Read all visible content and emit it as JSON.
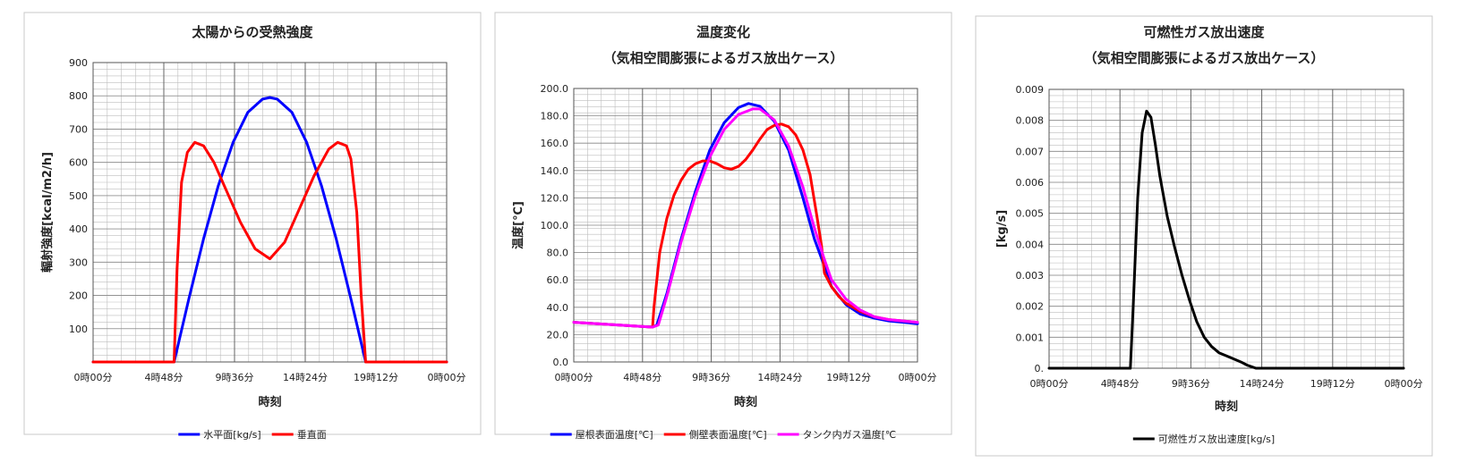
{
  "chart_data": [
    {
      "type": "line",
      "title_lines": [
        "太陽からの受熱強度"
      ],
      "xlabel": "時刻",
      "ylabel": "輻射強度[kcal/m2/h]",
      "xlim": [
        0,
        24
      ],
      "ylim": [
        0,
        900
      ],
      "x_tick_values": [
        0,
        4.8,
        9.6,
        14.4,
        19.2,
        24
      ],
      "x_tick_labels": [
        "0時00分",
        "4時48分",
        "9時36分",
        "14時24分",
        "19時12分",
        "0時00分"
      ],
      "y_tick_values": [
        100,
        200,
        300,
        400,
        500,
        600,
        700,
        800,
        900
      ],
      "y_tick_labels": [
        "100",
        "200",
        "300",
        "400",
        "500",
        "600",
        "700",
        "800",
        "900"
      ],
      "grid": true,
      "legend_position": "bottom",
      "series": [
        {
          "name": "水平面[kg/s]",
          "color": "#0000ff",
          "x": [
            0,
            5.5,
            6.5,
            7.5,
            8.5,
            9.5,
            10.5,
            11.5,
            12,
            12.5,
            13.5,
            14.5,
            15.5,
            16.5,
            17.5,
            18.5,
            24
          ],
          "y": [
            0,
            0,
            190,
            370,
            530,
            660,
            750,
            790,
            795,
            790,
            750,
            660,
            530,
            370,
            190,
            0,
            0
          ]
        },
        {
          "name": "垂直面",
          "color": "#ff0000",
          "x": [
            0,
            5.5,
            5.7,
            6,
            6.4,
            6.9,
            7.5,
            8.2,
            9,
            10,
            11,
            12,
            13,
            14,
            15,
            16,
            16.6,
            17.2,
            17.5,
            17.9,
            18.2,
            18.5,
            24
          ],
          "y": [
            0,
            0,
            280,
            540,
            630,
            660,
            650,
            600,
            520,
            420,
            340,
            310,
            360,
            460,
            560,
            640,
            660,
            650,
            610,
            450,
            200,
            0,
            0
          ]
        }
      ]
    },
    {
      "type": "line",
      "title_lines": [
        "温度変化",
        "（気相空間膨張によるガス放出ケース）"
      ],
      "xlabel": "時刻",
      "ylabel": "温度[℃]",
      "xlim": [
        0,
        24
      ],
      "ylim": [
        0,
        200
      ],
      "x_tick_values": [
        0,
        4.8,
        9.6,
        14.4,
        19.2,
        24
      ],
      "x_tick_labels": [
        "0時00分",
        "4時48分",
        "9時36分",
        "14時24分",
        "19時12分",
        "0時00分"
      ],
      "y_tick_values": [
        0,
        20,
        40,
        60,
        80,
        100,
        120,
        140,
        160,
        180,
        200
      ],
      "y_tick_labels": [
        "0.0",
        "20.0",
        "40.0",
        "60.0",
        "80.0",
        "100.0",
        "120.0",
        "140.0",
        "160.0",
        "180.0",
        "200.0"
      ],
      "grid": true,
      "legend_position": "bottom",
      "series": [
        {
          "name": "屋根表面温度[℃]",
          "color": "#0000ff",
          "x": [
            0,
            5.5,
            5.8,
            6.5,
            7.5,
            8.5,
            9.5,
            10.5,
            11.5,
            12.2,
            13,
            14,
            15,
            16,
            16.8,
            17.5,
            18,
            19,
            20,
            21,
            22,
            24
          ],
          "y": [
            29,
            25.5,
            27,
            50,
            90,
            125,
            155,
            175,
            186,
            189,
            187,
            176,
            155,
            120,
            90,
            70,
            55,
            42,
            35,
            32,
            30,
            28
          ]
        },
        {
          "name": "側壁表面温度[℃]",
          "color": "#ff0000",
          "x": [
            0,
            5.5,
            5.6,
            6,
            6.5,
            7,
            7.5,
            8,
            8.5,
            9,
            9.5,
            10,
            10.5,
            11,
            11.5,
            12,
            12.5,
            13,
            13.5,
            14,
            14.5,
            15,
            15.5,
            16,
            16.5,
            17,
            17.3,
            17.5,
            18,
            18.5,
            19,
            20,
            21,
            22,
            24
          ],
          "y": [
            29,
            25.5,
            40,
            80,
            105,
            122,
            133,
            141,
            145,
            147,
            147,
            145,
            142,
            141,
            143,
            148,
            155,
            163,
            170,
            173,
            174,
            172,
            166,
            155,
            137,
            105,
            85,
            65,
            55,
            48,
            43,
            37,
            33,
            31,
            29
          ]
        },
        {
          "name": "タンク内ガス温度[℃",
          "color": "#ff00ff",
          "x": [
            0,
            5.5,
            5.9,
            6.5,
            7.5,
            8.5,
            9.5,
            10.5,
            11.5,
            12.5,
            13,
            14,
            15,
            16,
            16.8,
            17.5,
            18,
            19,
            20,
            21,
            22,
            24
          ],
          "y": [
            29,
            25.5,
            27,
            48,
            88,
            122,
            150,
            170,
            181,
            185,
            185,
            177,
            158,
            128,
            98,
            75,
            60,
            46,
            38,
            33,
            31,
            29
          ]
        }
      ]
    },
    {
      "type": "line",
      "title_lines": [
        "可燃性ガス放出速度",
        "（気相空間膨張によるガス放出ケース）"
      ],
      "xlabel": "時刻",
      "ylabel": "[kg/s]",
      "xlim": [
        0,
        24
      ],
      "ylim": [
        0,
        0.009
      ],
      "x_tick_values": [
        0,
        4.8,
        9.6,
        14.4,
        19.2,
        24
      ],
      "x_tick_labels": [
        "0時00分",
        "4時48分",
        "9時36分",
        "14時24分",
        "19時12分",
        "0時00分"
      ],
      "y_tick_values": [
        0,
        0.001,
        0.002,
        0.003,
        0.004,
        0.005,
        0.006,
        0.007,
        0.008,
        0.009
      ],
      "y_tick_labels": [
        "0.",
        "0.001",
        "0.002",
        "0.003",
        "0.004",
        "0.005",
        "0.006",
        "0.007",
        "0.008",
        "0.009"
      ],
      "grid": true,
      "legend_position": "bottom",
      "series": [
        {
          "name": "可燃性ガス放出速度[kg/s]",
          "color": "#000000",
          "x": [
            0,
            5.5,
            5.7,
            6,
            6.3,
            6.6,
            6.9,
            7.2,
            7.5,
            8,
            8.5,
            9,
            9.5,
            10,
            10.5,
            11,
            11.5,
            12,
            12.5,
            13,
            13.4,
            14,
            24
          ],
          "y": [
            0,
            0,
            0.002,
            0.0055,
            0.0076,
            0.0083,
            0.0081,
            0.0072,
            0.0062,
            0.0049,
            0.0039,
            0.003,
            0.0022,
            0.0015,
            0.001,
            0.0007,
            0.0005,
            0.0004,
            0.0003,
            0.0002,
            0.0001,
            0,
            0
          ]
        }
      ]
    }
  ]
}
